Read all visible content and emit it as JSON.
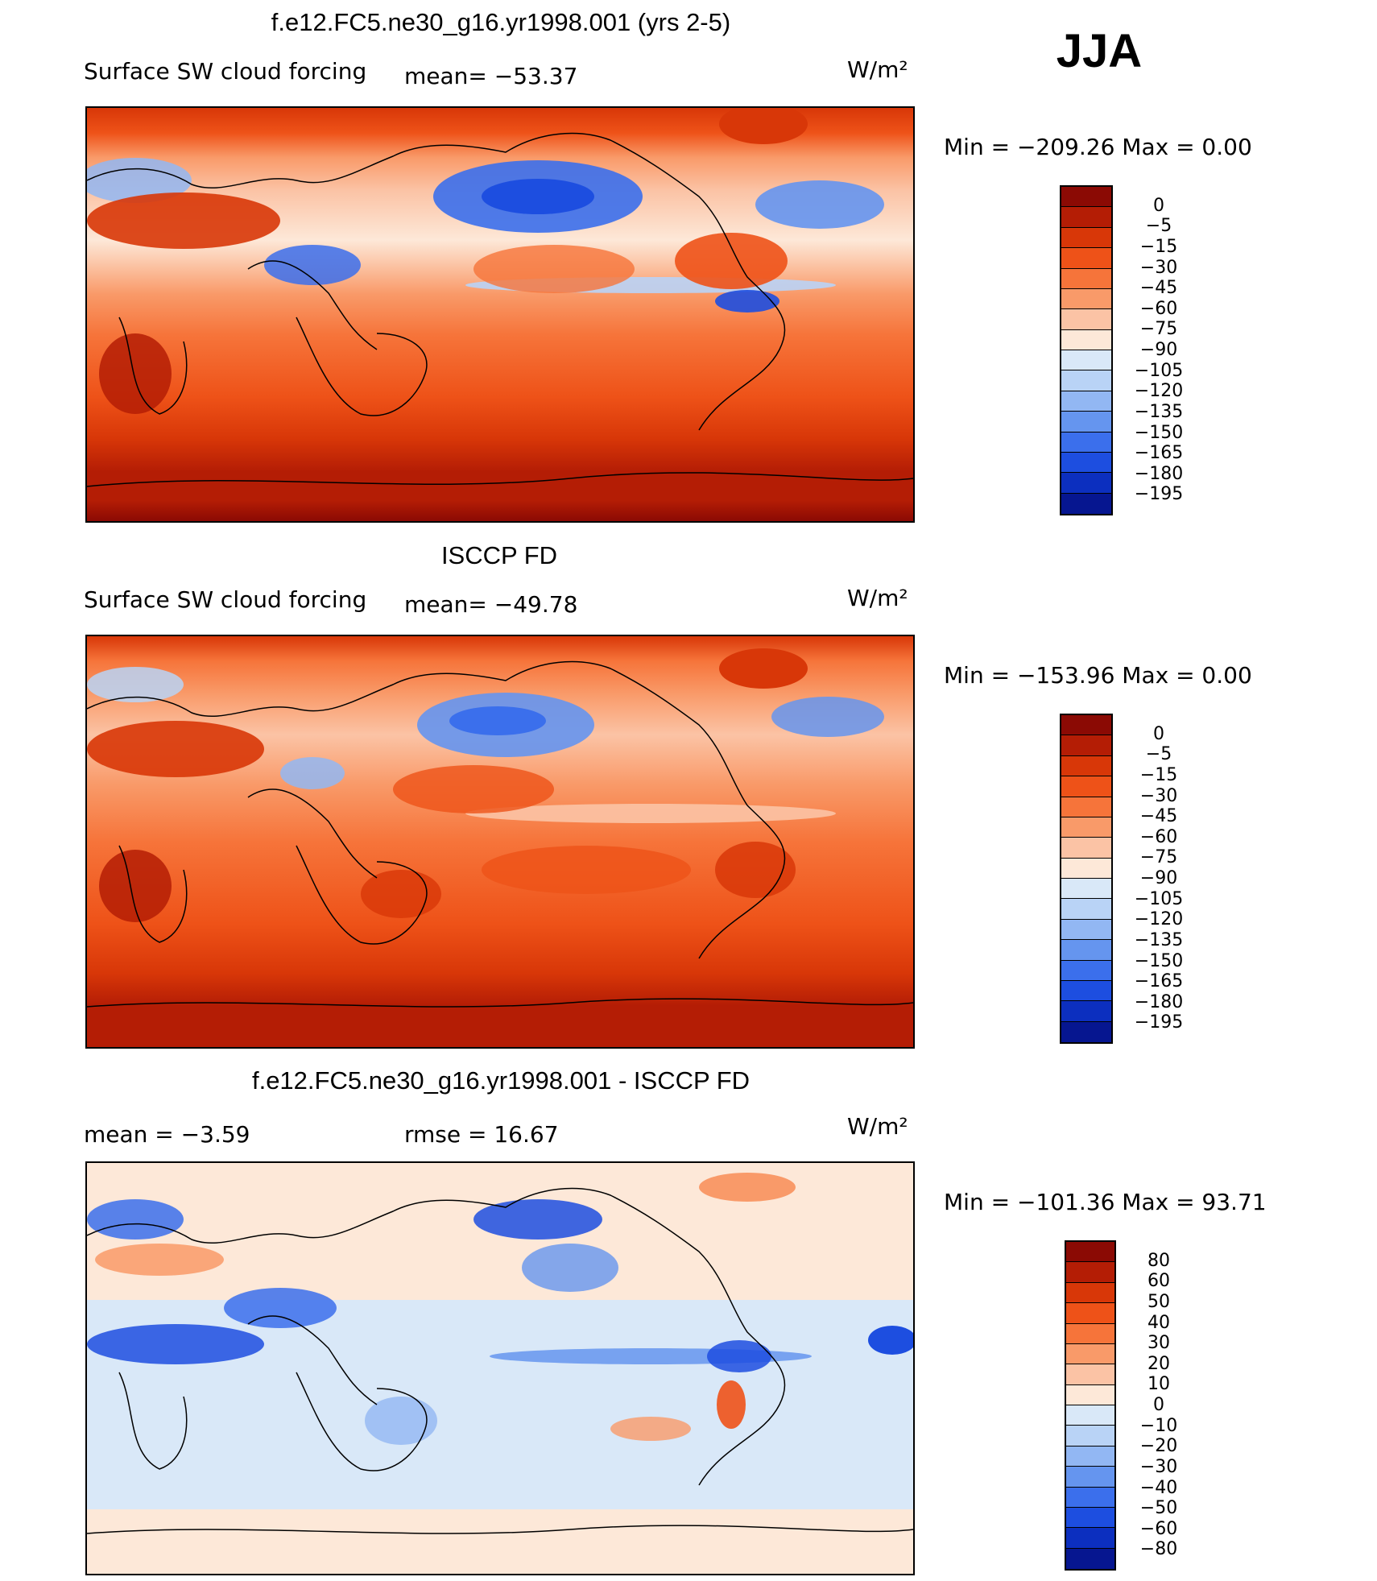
{
  "season": "JJA",
  "panels": [
    {
      "title": "f.e12.FC5.ne30_g16.yr1998.001 (yrs 2-5)",
      "left_label": "Surface SW cloud forcing",
      "stat_label": "mean=  −53.37",
      "units": "W/m²",
      "min_max": "Min  =  −209.26  Max  =     0.00",
      "colorbar_labels": [
        "0",
        "−5",
        "−15",
        "−30",
        "−45",
        "−60",
        "−75",
        "−90",
        "−105",
        "−120",
        "−135",
        "−150",
        "−165",
        "−180",
        "−195"
      ],
      "colorbar_colors": [
        "#8b0a04",
        "#b41d05",
        "#d83708",
        "#ee5218",
        "#f6743a",
        "#f99a69",
        "#fbc3a5",
        "#fde8d8",
        "#d9e8f8",
        "#b9d3f6",
        "#92b7f3",
        "#6595ef",
        "#3b6fec",
        "#1d4ee0",
        "#0c2fbf",
        "#061690"
      ],
      "mean_value": -53.37,
      "min_value": -209.26,
      "max_value": 0.0
    },
    {
      "title": "ISCCP FD",
      "left_label": "Surface SW cloud forcing",
      "stat_label": "mean=  −49.78",
      "units": "W/m²",
      "min_max": "Min  =  −153.96  Max  =     0.00",
      "colorbar_labels": [
        "0",
        "−5",
        "−15",
        "−30",
        "−45",
        "−60",
        "−75",
        "−90",
        "−105",
        "−120",
        "−135",
        "−150",
        "−165",
        "−180",
        "−195"
      ],
      "colorbar_colors": [
        "#8b0a04",
        "#b41d05",
        "#d83708",
        "#ee5218",
        "#f6743a",
        "#f99a69",
        "#fbc3a5",
        "#fde8d8",
        "#d9e8f8",
        "#b9d3f6",
        "#92b7f3",
        "#6595ef",
        "#3b6fec",
        "#1d4ee0",
        "#0c2fbf",
        "#061690"
      ],
      "mean_value": -49.78,
      "min_value": -153.96,
      "max_value": 0.0
    },
    {
      "title": "f.e12.FC5.ne30_g16.yr1998.001 - ISCCP FD",
      "left_label": "mean  =    −3.59",
      "stat_label": "rmse  =    16.67",
      "units": "W/m²",
      "min_max": "Min  =  −101.36  Max  =    93.71",
      "colorbar_labels": [
        "80",
        "60",
        "50",
        "40",
        "30",
        "20",
        "10",
        "0",
        "−10",
        "−20",
        "−30",
        "−40",
        "−50",
        "−60",
        "−80"
      ],
      "colorbar_colors": [
        "#8b0a04",
        "#b41d05",
        "#d83708",
        "#ee5218",
        "#f6743a",
        "#f99a69",
        "#fbc3a5",
        "#fde8d8",
        "#d9e8f8",
        "#b9d3f6",
        "#92b7f3",
        "#6595ef",
        "#3b6fec",
        "#1d4ee0",
        "#0c2fbf",
        "#061690"
      ],
      "mean_value": -3.59,
      "rmse_value": 16.67,
      "min_value": -101.36,
      "max_value": 93.71
    }
  ]
}
